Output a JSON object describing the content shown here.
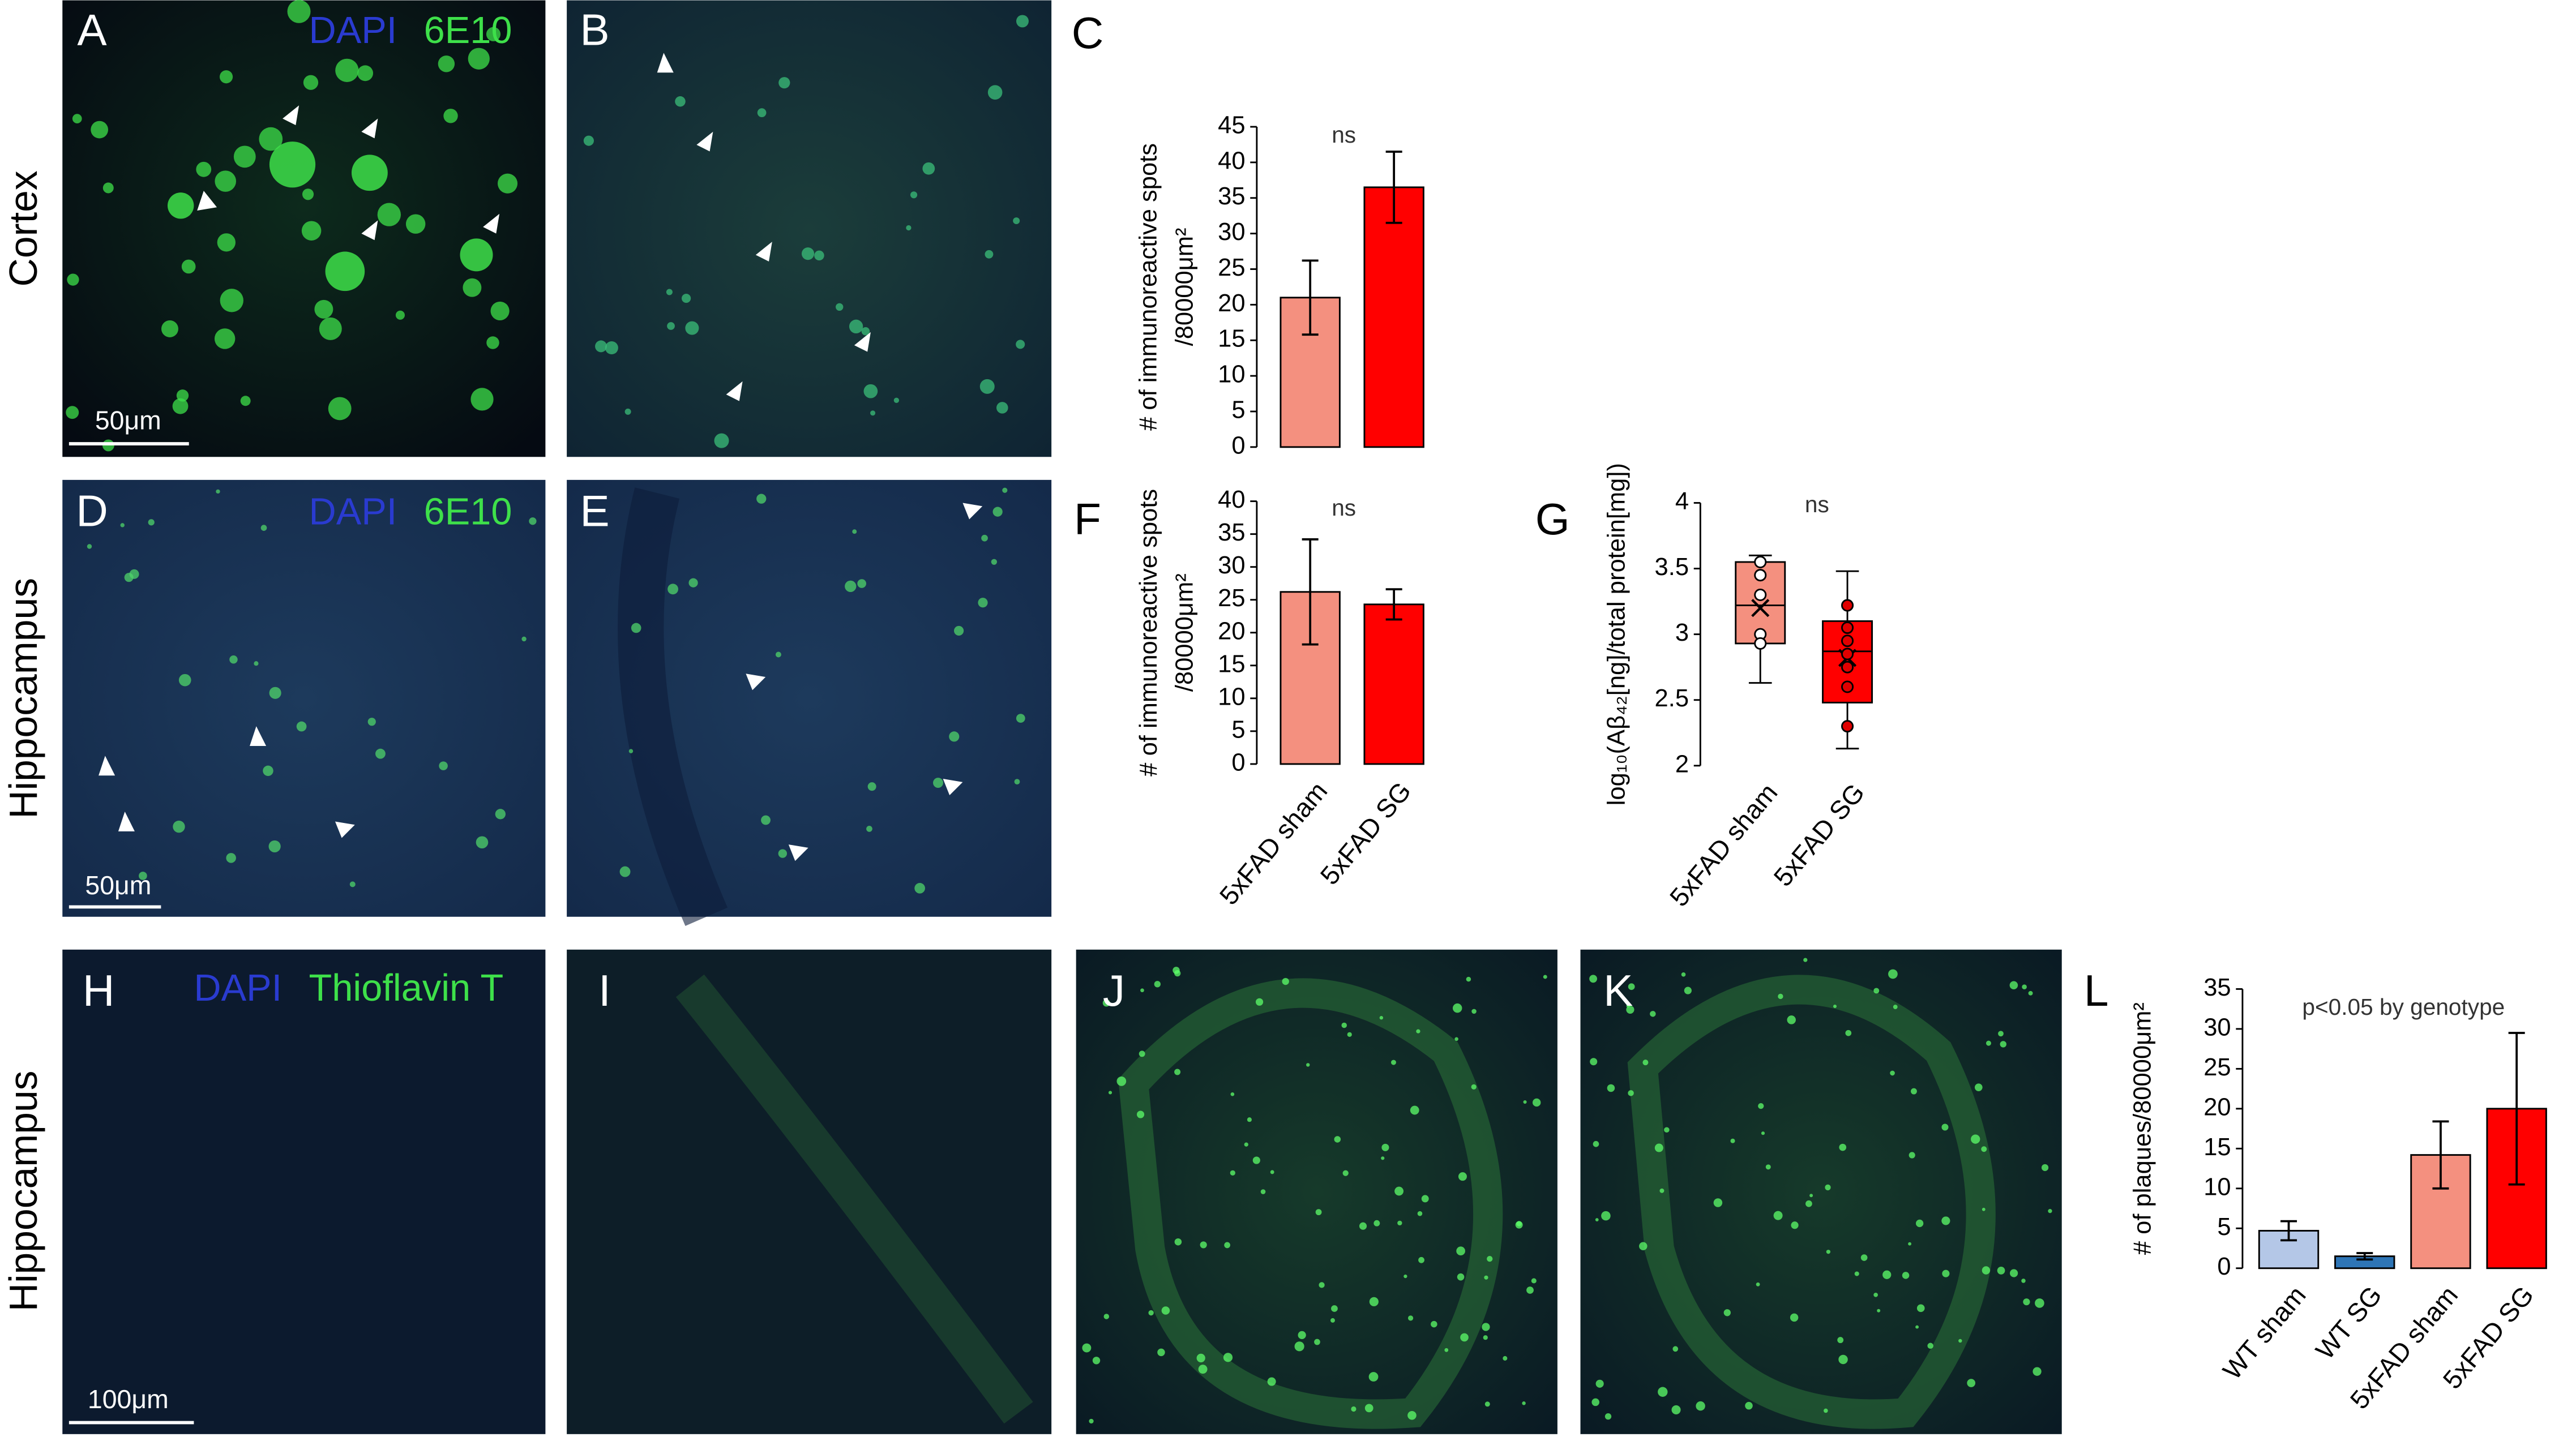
{
  "figure": {
    "panel_labels": [
      "A",
      "B",
      "C",
      "D",
      "E",
      "F",
      "G",
      "H",
      "I",
      "J",
      "K",
      "L"
    ],
    "row_labels": [
      "Cortex",
      "Hippocampus",
      "Hippocampus"
    ],
    "stain_labels": [
      [
        "DAPI",
        "6E10"
      ],
      [
        "DAPI",
        "6E10"
      ],
      [
        "DAPI",
        "Thioflavin T"
      ]
    ],
    "scale_bars": [
      "50μm",
      "50μm",
      "100μm"
    ]
  },
  "chart_data": [
    {
      "type": "bar",
      "ylabel": [
        "# of immunoreactive spots",
        "/80000μm²"
      ],
      "annotation": "ns",
      "categories": [
        null,
        null
      ],
      "values": [
        21,
        36.5
      ],
      "errors": [
        5.2,
        5
      ],
      "colors": [
        "#f4907f",
        "#ff0000"
      ],
      "ylim": [
        0,
        45
      ],
      "yticks": [
        0,
        5,
        10,
        15,
        20,
        25,
        30,
        35,
        40,
        45
      ]
    },
    {
      "type": "bar",
      "ylabel": [
        "# of immunoreactive spots",
        "/80000μm²"
      ],
      "annotation": "ns",
      "categories": [
        "5xFAD sham",
        "5xFAD SG"
      ],
      "values": [
        26.2,
        24.3
      ],
      "errors": [
        8,
        2.3
      ],
      "colors": [
        "#f4907f",
        "#ff0000"
      ],
      "ylim": [
        0,
        40
      ],
      "yticks": [
        0,
        5,
        10,
        15,
        20,
        25,
        30,
        35,
        40
      ]
    },
    {
      "type": "box",
      "ylabel": [
        "log₁₀(Aβ₄₂[ng]/total protein[mg])"
      ],
      "annotation": "ns",
      "categories": [
        "5xFAD sham",
        "5xFAD SG"
      ],
      "colors": [
        "#f4907f",
        "#ff0000"
      ],
      "boxes": [
        {
          "whislo": 2.63,
          "q1": 2.93,
          "med": 3.22,
          "q3": 3.55,
          "whishi": 3.6,
          "mean": 3.2,
          "points": [
            3.55,
            3.45,
            3.0,
            3.3,
            2.93
          ]
        },
        {
          "whislo": 2.13,
          "q1": 2.48,
          "med": 2.87,
          "q3": 3.1,
          "whishi": 3.48,
          "mean": 2.82,
          "points": [
            3.22,
            3.05,
            2.95,
            2.85,
            2.75,
            2.6,
            2.3
          ]
        }
      ],
      "ylim": [
        2,
        4
      ],
      "yticks": [
        2,
        2.5,
        3,
        3.5,
        4
      ]
    },
    {
      "type": "bar",
      "ylabel": [
        "# of plaques/80000μm²"
      ],
      "annotation": "p<0.05 by genotype",
      "categories": [
        "WT sham",
        "WT SG",
        "5xFAD sham",
        "5xFAD SG"
      ],
      "values": [
        4.7,
        1.5,
        14.2,
        20
      ],
      "errors": [
        1.2,
        0.4,
        4.2,
        9.5
      ],
      "colors": [
        "#b4c7e7",
        "#2e75b6",
        "#f4907f",
        "#ff0000"
      ],
      "ylim": [
        0,
        35
      ],
      "yticks": [
        0,
        5,
        10,
        15,
        20,
        25,
        30,
        35
      ]
    }
  ]
}
